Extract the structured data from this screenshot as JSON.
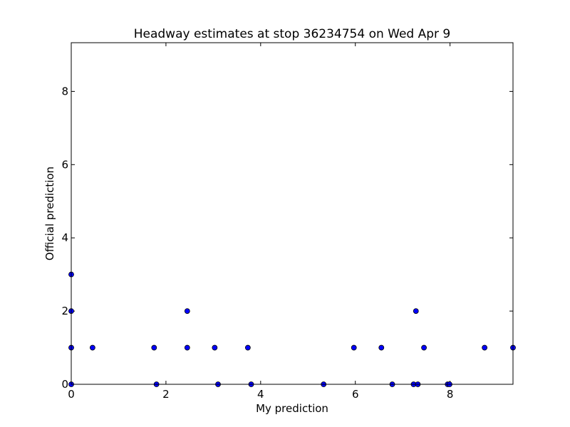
{
  "chart_data": {
    "type": "scatter",
    "title": "Headway estimates at stop 36234754 on Wed Apr 9",
    "xlabel": "My prediction",
    "ylabel": "Official prediction",
    "xlim": [
      0,
      9.33
    ],
    "ylim": [
      0,
      9.33
    ],
    "xticks": [
      0,
      2,
      4,
      6,
      8
    ],
    "yticks": [
      0,
      2,
      4,
      6,
      8
    ],
    "grid": false,
    "marker_color": "#0000ff",
    "marker_edge_color": "#000000",
    "points": [
      {
        "x": 0,
        "y": 3
      },
      {
        "x": 0,
        "y": 2
      },
      {
        "x": 0,
        "y": 1
      },
      {
        "x": 0,
        "y": 0
      },
      {
        "x": 0.45,
        "y": 1
      },
      {
        "x": 1.75,
        "y": 1
      },
      {
        "x": 1.8,
        "y": 0
      },
      {
        "x": 2.45,
        "y": 2
      },
      {
        "x": 2.45,
        "y": 1
      },
      {
        "x": 3.03,
        "y": 1
      },
      {
        "x": 3.1,
        "y": 0
      },
      {
        "x": 3.73,
        "y": 1
      },
      {
        "x": 3.8,
        "y": 0
      },
      {
        "x": 5.33,
        "y": 0
      },
      {
        "x": 5.97,
        "y": 1
      },
      {
        "x": 6.55,
        "y": 1
      },
      {
        "x": 6.78,
        "y": 0
      },
      {
        "x": 7.23,
        "y": 0
      },
      {
        "x": 7.28,
        "y": 2
      },
      {
        "x": 7.32,
        "y": 0
      },
      {
        "x": 7.45,
        "y": 1
      },
      {
        "x": 7.95,
        "y": 0
      },
      {
        "x": 7.99,
        "y": 0
      },
      {
        "x": 8.73,
        "y": 1
      },
      {
        "x": 9.33,
        "y": 1
      }
    ]
  }
}
